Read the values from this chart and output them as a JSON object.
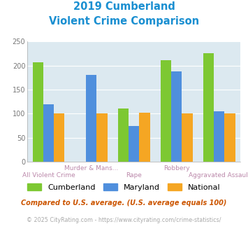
{
  "title_line1": "2019 Cumberland",
  "title_line2": "Violent Crime Comparison",
  "title_color": "#1a8fd1",
  "categories": [
    "All Violent Crime",
    "Murder & Mans...",
    "Rape",
    "Robbery",
    "Aggravated Assault"
  ],
  "series": {
    "Cumberland": [
      207,
      null,
      110,
      211,
      226
    ],
    "Maryland": [
      120,
      180,
      75,
      188,
      105
    ],
    "National": [
      101,
      101,
      102,
      101,
      101
    ]
  },
  "colors": {
    "Cumberland": "#7dc832",
    "Maryland": "#4f8fdd",
    "National": "#f5a623"
  },
  "ylim": [
    0,
    250
  ],
  "yticks": [
    0,
    50,
    100,
    150,
    200,
    250
  ],
  "bg_color": "#dce9f0",
  "bar_width": 0.25,
  "footnote1": "Compared to U.S. average. (U.S. average equals 100)",
  "footnote2": "© 2025 CityRating.com - https://www.cityrating.com/crime-statistics/",
  "footnote1_color": "#cc5500",
  "footnote2_color": "#aaaaaa",
  "footnote2_link_color": "#4f8fdd",
  "label_color": "#cc88aa"
}
